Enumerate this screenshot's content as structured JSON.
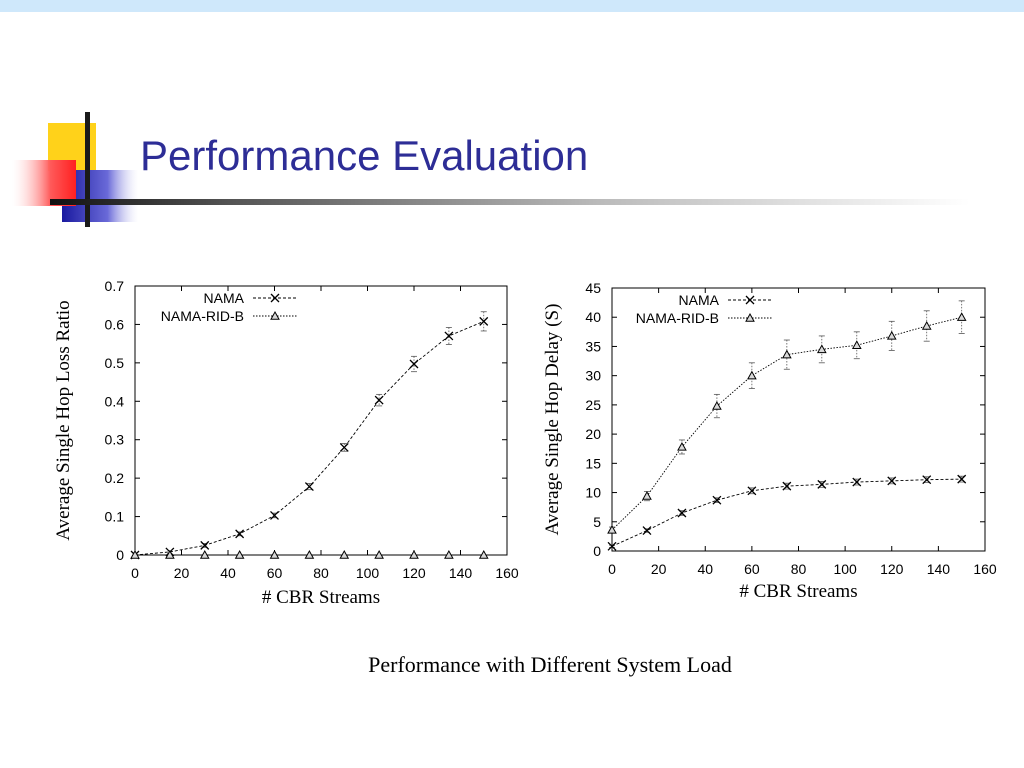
{
  "slide": {
    "title": "Performance Evaluation",
    "caption": "Performance with Different System Load",
    "title_color": "#2d2d96"
  },
  "chart_data": [
    {
      "type": "line",
      "xlabel": "# CBR Streams",
      "ylabel": "Average Single Hop Loss Ratio",
      "xlim": [
        0,
        160
      ],
      "ylim": [
        0,
        0.7
      ],
      "x_ticks": [
        0,
        20,
        40,
        60,
        80,
        100,
        120,
        140,
        160
      ],
      "y_ticks": [
        0,
        0.1,
        0.2,
        0.3,
        0.4,
        0.5,
        0.6,
        0.7
      ],
      "y_tick_labels": [
        "0",
        "0.1",
        "0.2",
        "0.3",
        "0.4",
        "0.5",
        "0.6",
        "0.7"
      ],
      "legend_position": "top-left",
      "grid": false,
      "series": [
        {
          "name": "NAMA",
          "marker": "x",
          "x": [
            0,
            15,
            30,
            45,
            60,
            75,
            90,
            105,
            120,
            135,
            150
          ],
          "values": [
            0.0,
            0.008,
            0.025,
            0.055,
            0.103,
            0.178,
            0.28,
            0.403,
            0.497,
            0.57,
            0.608
          ],
          "errors": [
            0,
            0,
            0.005,
            0.005,
            0.006,
            0.008,
            0.01,
            0.015,
            0.02,
            0.022,
            0.025
          ]
        },
        {
          "name": "NAMA-RID-B",
          "marker": "triangle",
          "x": [
            0,
            15,
            30,
            45,
            60,
            75,
            90,
            105,
            120,
            135,
            150
          ],
          "values": [
            0,
            0,
            0,
            0,
            0,
            0,
            0,
            0,
            0,
            0,
            0
          ],
          "errors": [
            0,
            0,
            0,
            0,
            0,
            0,
            0,
            0,
            0,
            0,
            0
          ]
        }
      ]
    },
    {
      "type": "line",
      "xlabel": "# CBR Streams",
      "ylabel": "Average Single Hop Delay (S)",
      "xlim": [
        0,
        160
      ],
      "ylim": [
        0,
        45
      ],
      "x_ticks": [
        0,
        20,
        40,
        60,
        80,
        100,
        120,
        140,
        160
      ],
      "y_ticks": [
        0,
        5,
        10,
        15,
        20,
        25,
        30,
        35,
        40,
        45
      ],
      "y_tick_labels": [
        "0",
        "5",
        "10",
        "15",
        "20",
        "25",
        "30",
        "35",
        "40",
        "45"
      ],
      "legend_position": "top-left",
      "grid": false,
      "series": [
        {
          "name": "NAMA",
          "marker": "x",
          "x": [
            0,
            15,
            30,
            45,
            60,
            75,
            90,
            105,
            120,
            135,
            150
          ],
          "values": [
            0.8,
            3.5,
            6.5,
            8.7,
            10.3,
            11.1,
            11.4,
            11.8,
            12.0,
            12.2,
            12.3
          ],
          "errors": [
            0.2,
            0.3,
            0.4,
            0.4,
            0.5,
            0.5,
            0.5,
            0.5,
            0.5,
            0.5,
            0.5
          ]
        },
        {
          "name": "NAMA-RID-B",
          "marker": "triangle",
          "x": [
            0,
            15,
            30,
            45,
            60,
            75,
            90,
            105,
            120,
            135,
            150
          ],
          "values": [
            3.6,
            9.4,
            17.8,
            24.8,
            30.0,
            33.6,
            34.5,
            35.2,
            36.8,
            38.5,
            40.0
          ],
          "errors": [
            0.5,
            0.8,
            1.2,
            2.0,
            2.2,
            2.5,
            2.3,
            2.3,
            2.5,
            2.6,
            2.8
          ]
        }
      ]
    }
  ]
}
